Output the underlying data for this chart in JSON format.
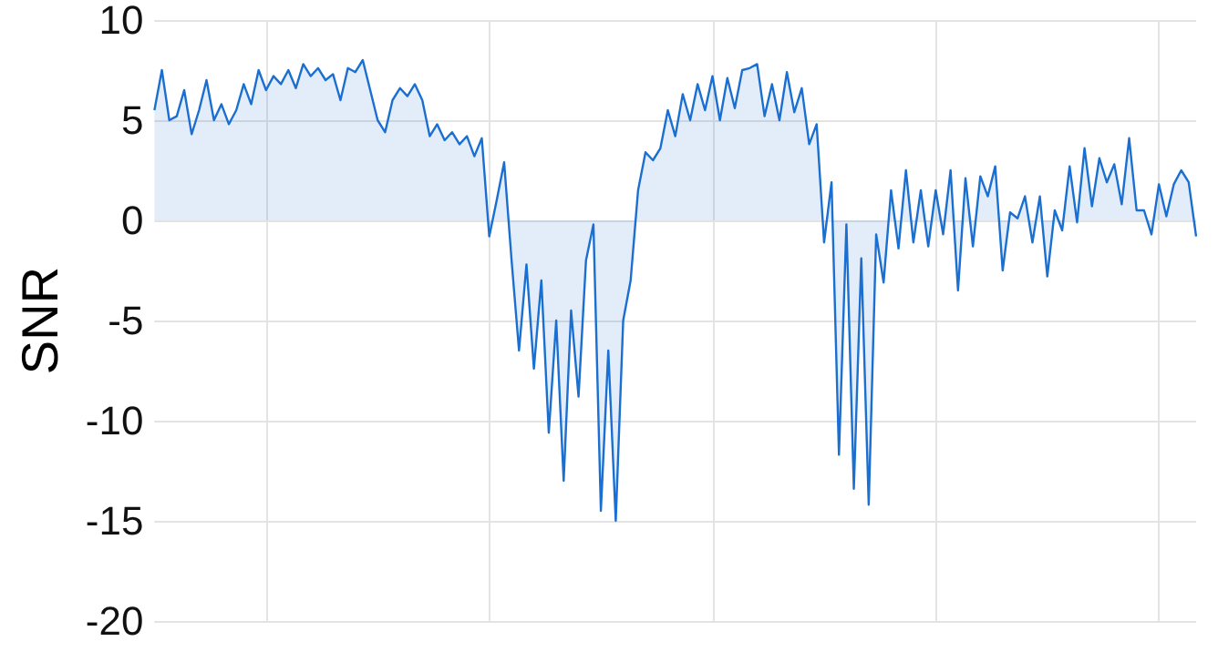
{
  "chart_data": {
    "type": "area",
    "ylabel": "SNR",
    "categories": [
      null,
      null,
      null,
      null,
      null,
      null,
      null,
      null,
      null,
      null,
      null,
      null,
      null,
      null,
      null,
      null,
      null,
      null,
      null,
      null,
      null,
      null,
      null,
      null,
      null,
      null,
      null,
      null,
      null,
      null,
      null,
      null,
      null,
      null,
      null,
      null,
      null,
      null,
      null,
      null,
      null,
      null,
      null,
      null,
      null,
      null,
      null,
      null,
      null,
      null,
      null,
      null,
      null,
      null,
      null,
      null,
      null,
      null,
      null,
      null,
      null,
      null,
      null,
      null,
      null,
      null,
      null,
      null,
      null,
      null,
      null,
      null,
      null,
      null,
      null,
      null,
      null,
      null,
      null,
      null,
      null,
      null,
      null,
      null,
      null,
      null,
      null,
      null,
      null,
      null,
      null,
      null,
      null,
      null,
      null,
      null,
      null,
      null,
      null,
      null,
      null,
      null,
      null,
      null,
      null,
      null,
      null,
      null,
      null,
      null,
      null,
      null,
      null,
      null,
      null,
      null,
      null,
      null,
      null,
      null,
      null,
      null,
      null,
      null,
      null,
      null,
      null,
      null,
      null,
      null,
      null,
      null,
      null,
      null,
      null,
      null,
      null,
      null,
      null,
      null,
      null
    ],
    "series": [
      {
        "color": "#1a6fd0",
        "values": [
          5.5,
          7.5,
          5.0,
          5.2,
          6.5,
          4.3,
          5.5,
          7.0,
          5.0,
          5.8,
          4.8,
          5.5,
          6.8,
          5.8,
          7.5,
          6.5,
          7.2,
          6.8,
          7.5,
          6.6,
          7.8,
          7.2,
          7.6,
          7.0,
          7.3,
          6.0,
          7.6,
          7.4,
          8.0,
          6.5,
          5.0,
          4.4,
          6.0,
          6.6,
          6.2,
          6.8,
          6.0,
          4.2,
          4.8,
          4.0,
          4.4,
          3.8,
          4.2,
          3.2,
          4.1,
          -0.8,
          1.0,
          2.9,
          -2.0,
          -6.5,
          -2.2,
          -7.4,
          -3.0,
          -10.6,
          -5.0,
          -13.0,
          -4.5,
          -8.8,
          -2.0,
          -0.2,
          -14.5,
          -6.5,
          -15.0,
          -5.0,
          -3.0,
          1.5,
          3.4,
          3.0,
          3.6,
          5.5,
          4.2,
          6.3,
          5.0,
          6.8,
          5.5,
          7.2,
          5.0,
          7.1,
          5.6,
          7.5,
          7.6,
          7.8,
          5.2,
          6.8,
          5.0,
          7.4,
          5.4,
          6.6,
          3.8,
          4.8,
          -1.1,
          1.9,
          -11.7,
          -0.2,
          -13.4,
          -1.9,
          -14.2,
          -0.7,
          -3.1,
          1.5,
          -1.4,
          2.5,
          -1.1,
          1.5,
          -1.3,
          1.5,
          -0.7,
          2.5,
          -3.5,
          2.1,
          -1.3,
          2.2,
          1.2,
          2.7,
          -2.5,
          0.4,
          0.1,
          1.2,
          -1.1,
          1.2,
          -2.8,
          0.5,
          -0.5,
          2.7,
          -0.1,
          3.6,
          0.7,
          3.1,
          1.9,
          2.8,
          0.8,
          4.1,
          0.5,
          0.5,
          -0.7,
          1.8,
          0.2,
          1.8,
          2.5,
          1.9,
          -0.8
        ]
      }
    ],
    "ylim": [
      -20,
      10
    ],
    "yticks": [
      -20,
      -15,
      -10,
      -5,
      0,
      5,
      10
    ],
    "grid": true,
    "tick_labels": "y"
  }
}
